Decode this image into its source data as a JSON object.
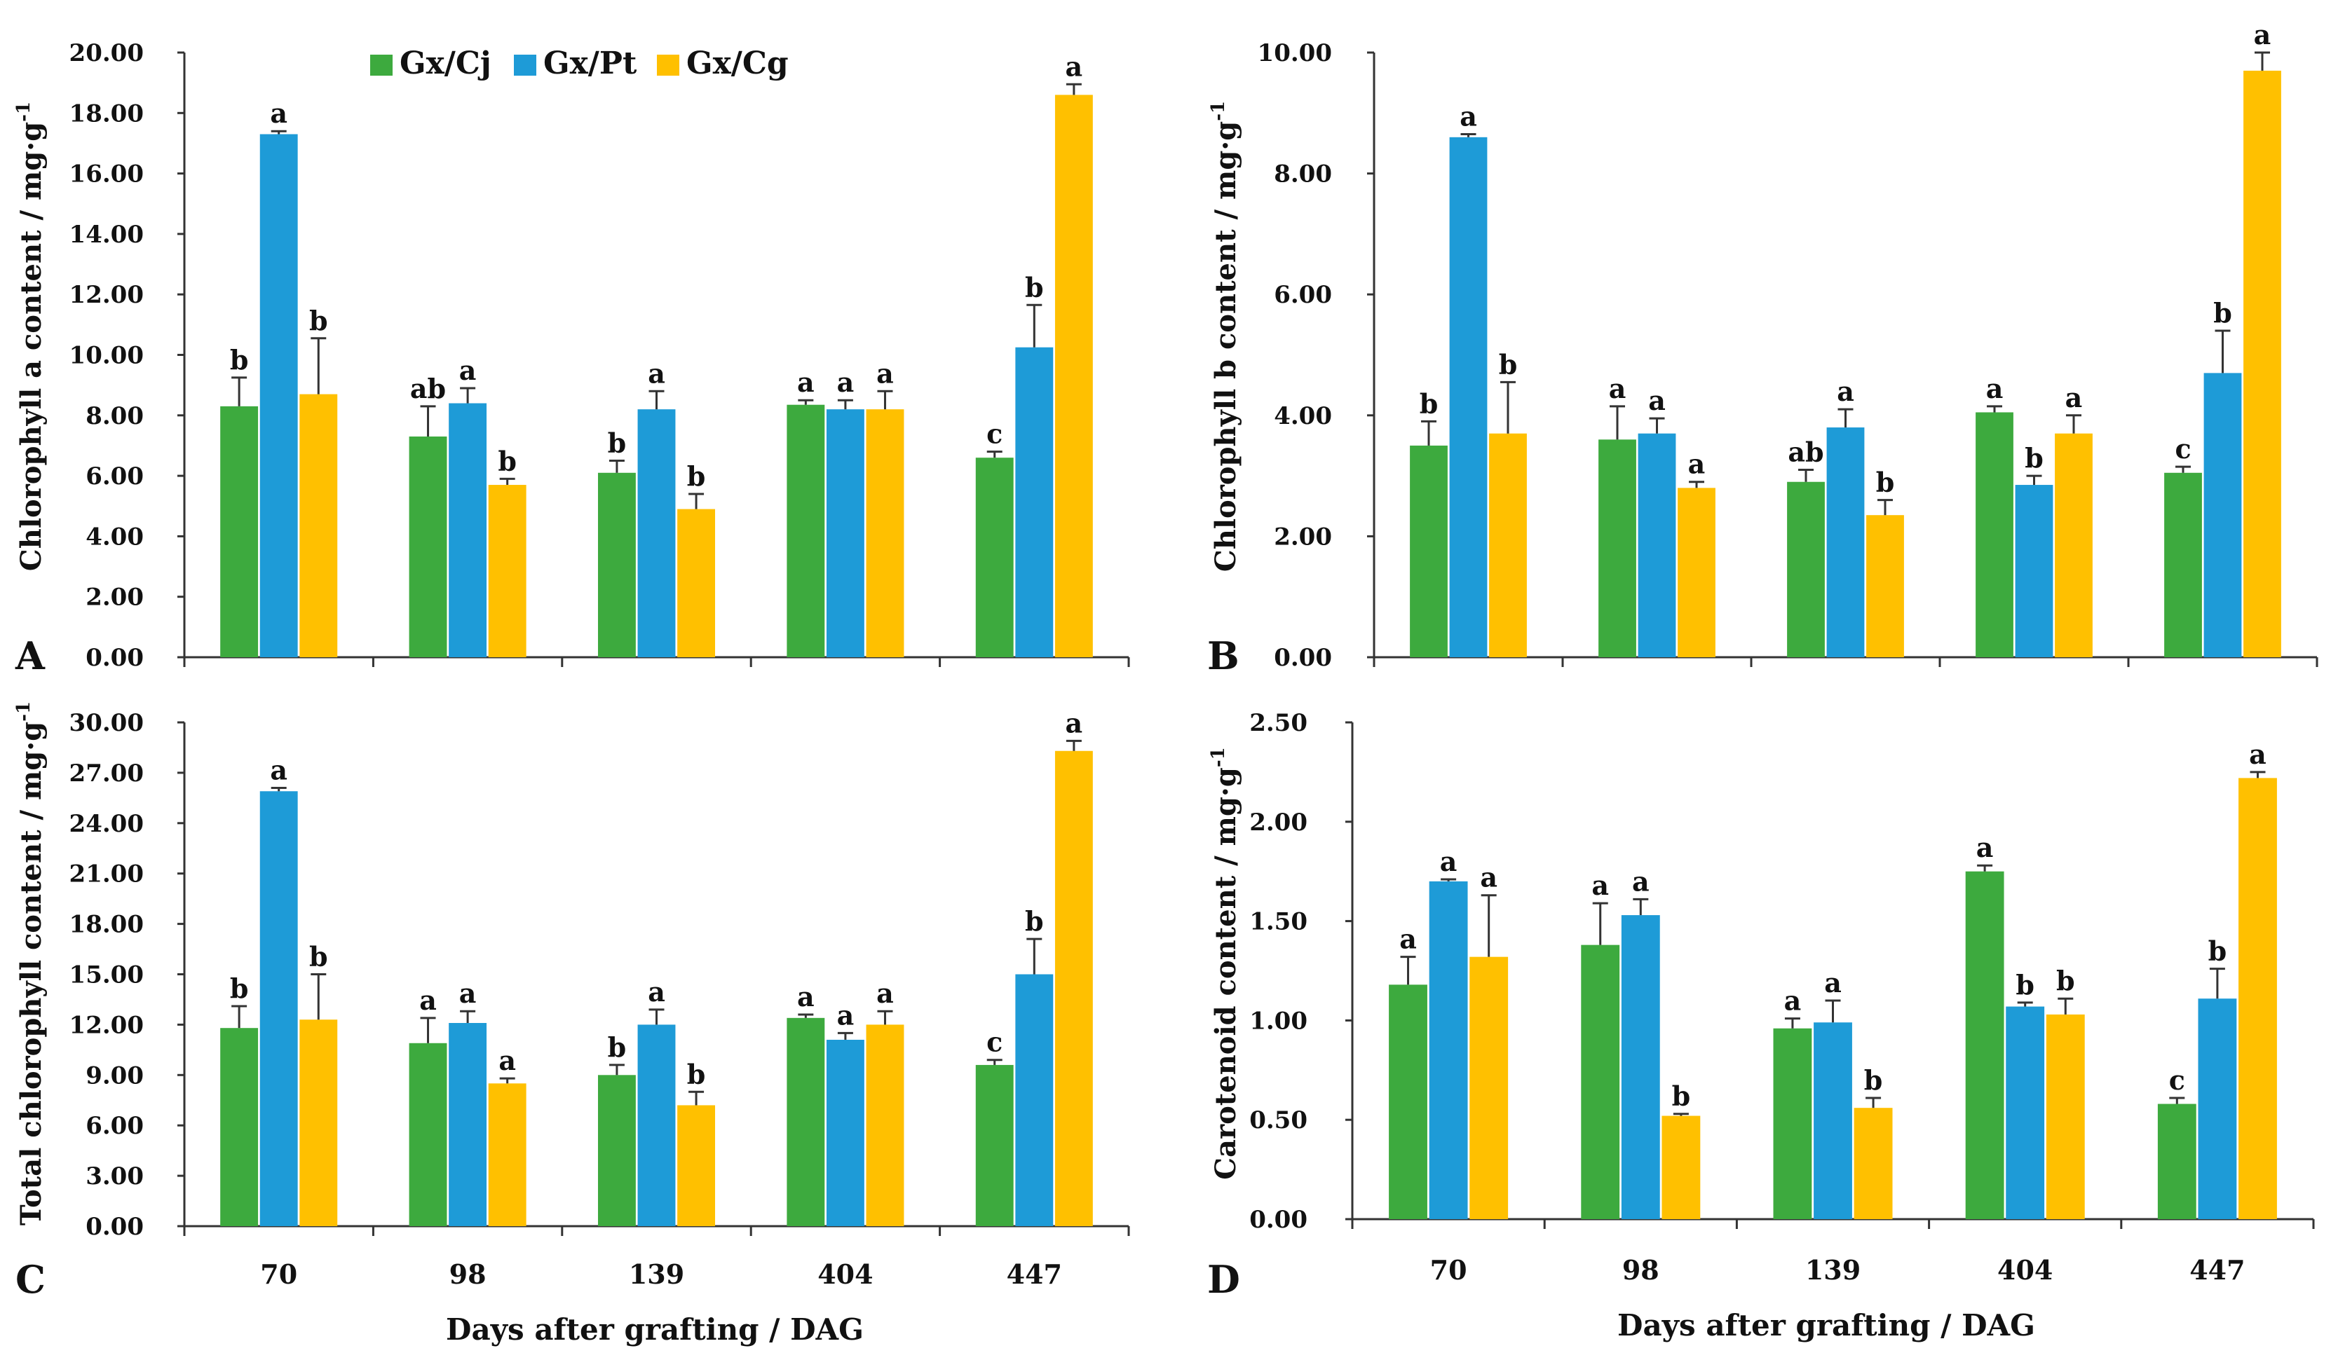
{
  "legend": [
    {
      "name": "Gx/Cj",
      "color": "#3DAA3E"
    },
    {
      "name": "Gx/Pt",
      "color": "#1E9BD7"
    },
    {
      "name": "Gx/Cg",
      "color": "#FFC000"
    }
  ],
  "chart_data": [
    {
      "panel": "A",
      "type": "bar",
      "ylabel": "Chlorophyll a content / mg·g",
      "ylabel_superscript": "-1",
      "xlabel": "",
      "categories": [
        "70",
        "98",
        "139",
        "404",
        "447"
      ],
      "ylim": [
        0,
        20
      ],
      "yticks": [
        "0.00",
        "2.00",
        "4.00",
        "6.00",
        "8.00",
        "10.00",
        "12.00",
        "14.00",
        "16.00",
        "18.00",
        "20.00"
      ],
      "series": [
        {
          "name": "Gx/Cj",
          "values": [
            8.3,
            7.3,
            6.1,
            8.35,
            6.6
          ],
          "errors": [
            0.95,
            1.0,
            0.4,
            0.15,
            0.2
          ],
          "labels": [
            "b",
            "ab",
            "b",
            "a",
            "c"
          ]
        },
        {
          "name": "Gx/Pt",
          "values": [
            17.3,
            8.4,
            8.2,
            8.2,
            10.25
          ],
          "errors": [
            0.1,
            0.5,
            0.6,
            0.3,
            1.4
          ],
          "labels": [
            "a",
            "a",
            "a",
            "a",
            "b"
          ]
        },
        {
          "name": "Gx/Cg",
          "values": [
            8.7,
            5.7,
            4.9,
            8.2,
            18.6
          ],
          "errors": [
            1.85,
            0.2,
            0.5,
            0.6,
            0.35
          ],
          "labels": [
            "b",
            "b",
            "b",
            "a",
            "a"
          ]
        }
      ]
    },
    {
      "panel": "B",
      "type": "bar",
      "ylabel": "Chlorophyll b content / mg·g",
      "ylabel_superscript": "-1",
      "xlabel": "",
      "categories": [
        "70",
        "98",
        "139",
        "404",
        "447"
      ],
      "ylim": [
        0,
        10
      ],
      "yticks": [
        "0.00",
        "2.00",
        "4.00",
        "6.00",
        "8.00",
        "10.00"
      ],
      "series": [
        {
          "name": "Gx/Cj",
          "values": [
            3.5,
            3.6,
            2.9,
            4.05,
            3.05
          ],
          "errors": [
            0.4,
            0.55,
            0.2,
            0.1,
            0.1
          ],
          "labels": [
            "b",
            "a",
            "ab",
            "a",
            "c"
          ]
        },
        {
          "name": "Gx/Pt",
          "values": [
            8.6,
            3.7,
            3.8,
            2.85,
            4.7
          ],
          "errors": [
            0.05,
            0.25,
            0.3,
            0.15,
            0.7
          ],
          "labels": [
            "a",
            "a",
            "a",
            "b",
            "b"
          ]
        },
        {
          "name": "Gx/Cg",
          "values": [
            3.7,
            2.8,
            2.35,
            3.7,
            9.7
          ],
          "errors": [
            0.85,
            0.1,
            0.25,
            0.3,
            0.3
          ],
          "labels": [
            "b",
            "a",
            "b",
            "a",
            "a"
          ]
        }
      ]
    },
    {
      "panel": "C",
      "type": "bar",
      "ylabel": "Total chlorophyll content / mg·g",
      "ylabel_superscript": "-1",
      "xlabel": "Days after grafting / DAG",
      "categories": [
        "70",
        "98",
        "139",
        "404",
        "447"
      ],
      "ylim": [
        0,
        30
      ],
      "yticks": [
        "0.00",
        "3.00",
        "6.00",
        "9.00",
        "12.00",
        "15.00",
        "18.00",
        "21.00",
        "24.00",
        "27.00",
        "30.00"
      ],
      "series": [
        {
          "name": "Gx/Cj",
          "values": [
            11.8,
            10.9,
            9.0,
            12.4,
            9.6
          ],
          "errors": [
            1.3,
            1.5,
            0.6,
            0.2,
            0.3
          ],
          "labels": [
            "b",
            "a",
            "b",
            "a",
            "c"
          ]
        },
        {
          "name": "Gx/Pt",
          "values": [
            25.9,
            12.1,
            12.0,
            11.1,
            15.0
          ],
          "errors": [
            0.2,
            0.7,
            0.9,
            0.4,
            2.1
          ],
          "labels": [
            "a",
            "a",
            "a",
            "a",
            "b"
          ]
        },
        {
          "name": "Gx/Cg",
          "values": [
            12.3,
            8.5,
            7.2,
            12.0,
            28.3
          ],
          "errors": [
            2.7,
            0.3,
            0.8,
            0.8,
            0.6
          ],
          "labels": [
            "b",
            "a",
            "b",
            "a",
            "a"
          ]
        }
      ]
    },
    {
      "panel": "D",
      "type": "bar",
      "ylabel": "Carotenoid content / mg·g",
      "ylabel_superscript": "-1",
      "xlabel": "Days after grafting / DAG",
      "categories": [
        "70",
        "98",
        "139",
        "404",
        "447"
      ],
      "ylim": [
        0,
        2.5
      ],
      "yticks": [
        "0.00",
        "0.50",
        "1.00",
        "1.50",
        "2.00",
        "2.50"
      ],
      "series": [
        {
          "name": "Gx/Cj",
          "values": [
            1.18,
            1.38,
            0.96,
            1.75,
            0.58
          ],
          "errors": [
            0.14,
            0.21,
            0.05,
            0.03,
            0.03
          ],
          "labels": [
            "a",
            "a",
            "a",
            "a",
            "c"
          ]
        },
        {
          "name": "Gx/Pt",
          "values": [
            1.7,
            1.53,
            0.99,
            1.07,
            1.11
          ],
          "errors": [
            0.01,
            0.08,
            0.11,
            0.02,
            0.15
          ],
          "labels": [
            "a",
            "a",
            "a",
            "b",
            "b"
          ]
        },
        {
          "name": "Gx/Cg",
          "values": [
            1.32,
            0.52,
            0.56,
            1.03,
            2.22
          ],
          "errors": [
            0.31,
            0.01,
            0.05,
            0.08,
            0.03
          ],
          "labels": [
            "a",
            "b",
            "b",
            "b",
            "a"
          ]
        }
      ]
    }
  ]
}
